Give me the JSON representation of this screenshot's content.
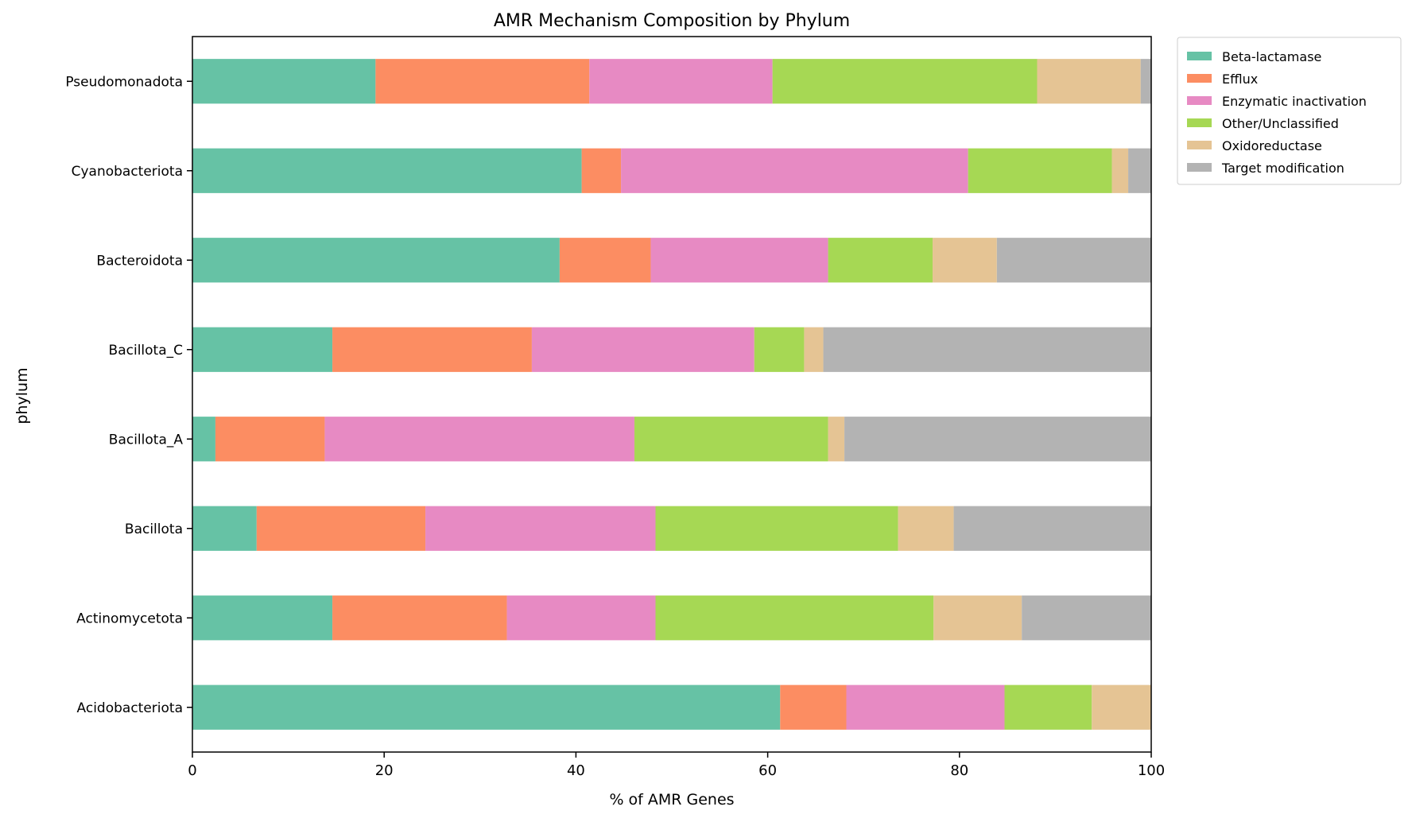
{
  "chart_data": {
    "type": "bar",
    "orientation": "horizontal",
    "stacked": true,
    "title": "AMR Mechanism Composition by Phylum",
    "xlabel": "% of AMR Genes",
    "ylabel": "phylum",
    "xlim": [
      0,
      100
    ],
    "xticks": [
      0,
      20,
      40,
      60,
      80,
      100
    ],
    "grid": false,
    "legend_placement": "outside-top-right",
    "categories": [
      "Acidobacteriota",
      "Actinomycetota",
      "Bacillota",
      "Bacillota_A",
      "Bacillota_C",
      "Bacteroidota",
      "Cyanobacteriota",
      "Pseudomonadota"
    ],
    "series": [
      {
        "name": "Beta-lactamase",
        "color": "#66c2a5",
        "values": [
          61.3,
          14.6,
          6.7,
          2.4,
          14.6,
          38.3,
          40.6,
          19.1
        ]
      },
      {
        "name": "Efflux",
        "color": "#fc8d62",
        "values": [
          6.9,
          18.2,
          17.6,
          11.4,
          20.8,
          9.5,
          4.1,
          22.3
        ]
      },
      {
        "name": "Enzymatic inactivation",
        "color": "#e78ac3",
        "values": [
          16.5,
          15.5,
          24.0,
          32.3,
          23.2,
          18.5,
          36.2,
          19.1
        ]
      },
      {
        "name": "Other/Unclassified",
        "color": "#a6d854",
        "values": [
          9.1,
          29.0,
          25.3,
          20.2,
          5.2,
          10.9,
          15.0,
          27.6
        ]
      },
      {
        "name": "Oxidoreductase",
        "color": "#e5c494",
        "values": [
          6.2,
          9.2,
          5.8,
          1.7,
          2.0,
          6.7,
          1.7,
          10.8
        ]
      },
      {
        "name": "Target modification",
        "color": "#b3b3b3",
        "values": [
          0.0,
          13.5,
          20.6,
          32.0,
          34.2,
          16.1,
          2.4,
          1.1
        ]
      }
    ]
  }
}
